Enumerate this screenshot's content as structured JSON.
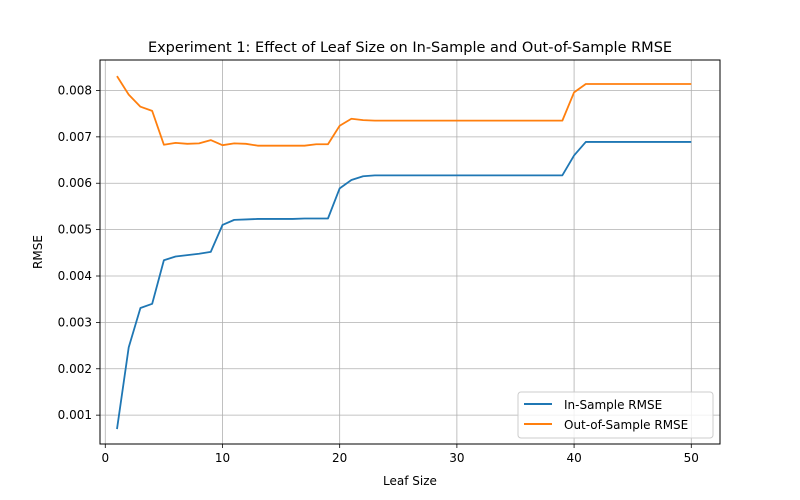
{
  "chart_data": {
    "type": "line",
    "title": "Experiment 1: Effect of Leaf Size on In-Sample and Out-of-Sample RMSE",
    "xlabel": "Leaf Size",
    "ylabel": "RMSE",
    "xlim": [
      -0.45,
      52.45
    ],
    "ylim": [
      0.000378,
      0.008657
    ],
    "x_ticks": [
      0,
      10,
      20,
      30,
      40,
      50
    ],
    "x_tick_labels": [
      "0",
      "10",
      "20",
      "30",
      "40",
      "50"
    ],
    "y_ticks": [
      0.001,
      0.002,
      0.003,
      0.004,
      0.005,
      0.006,
      0.007,
      0.008
    ],
    "y_tick_labels": [
      "0.001",
      "0.002",
      "0.003",
      "0.004",
      "0.005",
      "0.006",
      "0.007",
      "0.008"
    ],
    "grid": true,
    "legend_position": "lower-right",
    "x": [
      1,
      2,
      3,
      4,
      5,
      6,
      7,
      8,
      9,
      10,
      11,
      12,
      13,
      14,
      15,
      16,
      17,
      18,
      19,
      20,
      21,
      22,
      23,
      24,
      25,
      26,
      27,
      28,
      29,
      30,
      31,
      32,
      33,
      34,
      35,
      36,
      37,
      38,
      39,
      40,
      41,
      42,
      43,
      44,
      45,
      46,
      47,
      48,
      49,
      50
    ],
    "series": [
      {
        "name": "In-Sample RMSE",
        "color": "#1f77b4",
        "values": [
          0.0007,
          0.00246,
          0.00331,
          0.0034,
          0.00434,
          0.00442,
          0.00445,
          0.00448,
          0.00452,
          0.0051,
          0.00521,
          0.00522,
          0.00523,
          0.00523,
          0.00523,
          0.00523,
          0.00524,
          0.00524,
          0.00524,
          0.00589,
          0.00607,
          0.00615,
          0.00617,
          0.00617,
          0.00617,
          0.00617,
          0.00617,
          0.00617,
          0.00617,
          0.00617,
          0.00617,
          0.00617,
          0.00617,
          0.00617,
          0.00617,
          0.00617,
          0.00617,
          0.00617,
          0.00617,
          0.0066,
          0.00689,
          0.00689,
          0.00689,
          0.00689,
          0.00689,
          0.00689,
          0.00689,
          0.00689,
          0.00689,
          0.00689
        ]
      },
      {
        "name": "Out-of-Sample RMSE",
        "color": "#ff7f0e",
        "values": [
          0.00831,
          0.00791,
          0.00765,
          0.00756,
          0.00683,
          0.00687,
          0.00685,
          0.00686,
          0.00693,
          0.00682,
          0.00686,
          0.00685,
          0.00681,
          0.00681,
          0.00681,
          0.00681,
          0.00681,
          0.00684,
          0.00684,
          0.00724,
          0.00739,
          0.00736,
          0.00735,
          0.00735,
          0.00735,
          0.00735,
          0.00735,
          0.00735,
          0.00735,
          0.00735,
          0.00735,
          0.00735,
          0.00735,
          0.00735,
          0.00735,
          0.00735,
          0.00735,
          0.00735,
          0.00735,
          0.00796,
          0.00814,
          0.00814,
          0.00814,
          0.00814,
          0.00814,
          0.00814,
          0.00814,
          0.00814,
          0.00814,
          0.00814
        ]
      }
    ]
  }
}
